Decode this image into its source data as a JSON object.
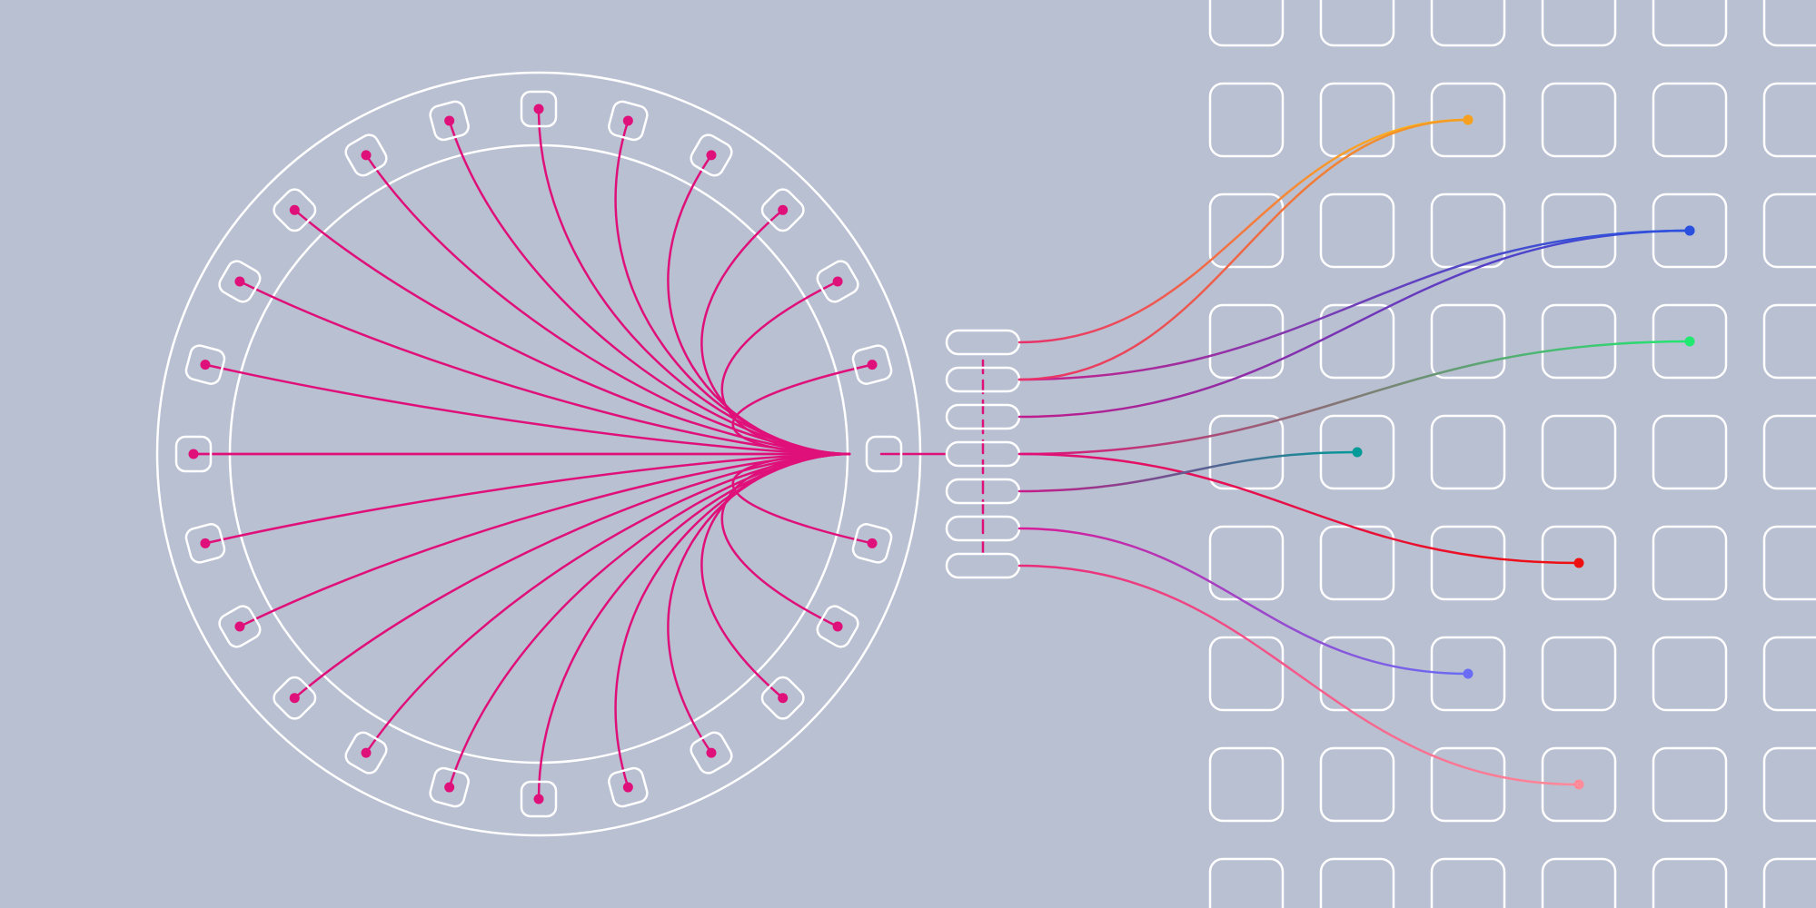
{
  "diagram": {
    "colors": {
      "background": "#b9c0d2",
      "outline": "#ffffff",
      "fan_wire": "#e0107a"
    },
    "ring": {
      "node_count": 24,
      "node_shape": "rounded-square",
      "inner_circle": true
    },
    "connector": {
      "pin_count": 7,
      "pin_shape": "pill"
    },
    "grid": {
      "columns": 6,
      "rows": 9,
      "cell_shape": "rounded-square"
    },
    "links": [
      {
        "name": "link-yellow",
        "pin": 0,
        "col": 2,
        "row": 1,
        "from_color": "#e8306a",
        "to_color": "#ffc214"
      },
      {
        "name": "link-blue",
        "pin": 1,
        "col": 4,
        "row": 2,
        "from_color": "#c8208a",
        "to_color": "#1a5ce6"
      },
      {
        "name": "link-orange",
        "pin": 1,
        "col": 2,
        "row": 1,
        "from_color": "#e8306a",
        "to_color": "#f5a020"
      },
      {
        "name": "link-violet",
        "pin": 2,
        "col": 4,
        "row": 2,
        "from_color": "#c01c8c",
        "to_color": "#2a50e0"
      },
      {
        "name": "link-green",
        "pin": 3,
        "col": 4,
        "row": 3,
        "from_color": "#e0107a",
        "to_color": "#20e870"
      },
      {
        "name": "link-red",
        "pin": 3,
        "col": 3,
        "row": 5,
        "from_color": "#e0107a",
        "to_color": "#ee1010"
      },
      {
        "name": "link-teal",
        "pin": 4,
        "col": 1,
        "row": 4,
        "from_color": "#c81a8a",
        "to_color": "#009a98"
      },
      {
        "name": "link-purple",
        "pin": 5,
        "col": 2,
        "row": 6,
        "from_color": "#d81c98",
        "to_color": "#6a6cf5"
      },
      {
        "name": "link-pink",
        "pin": 6,
        "col": 3,
        "row": 7,
        "from_color": "#e82a7a",
        "to_color": "#ff8a9a"
      }
    ]
  }
}
